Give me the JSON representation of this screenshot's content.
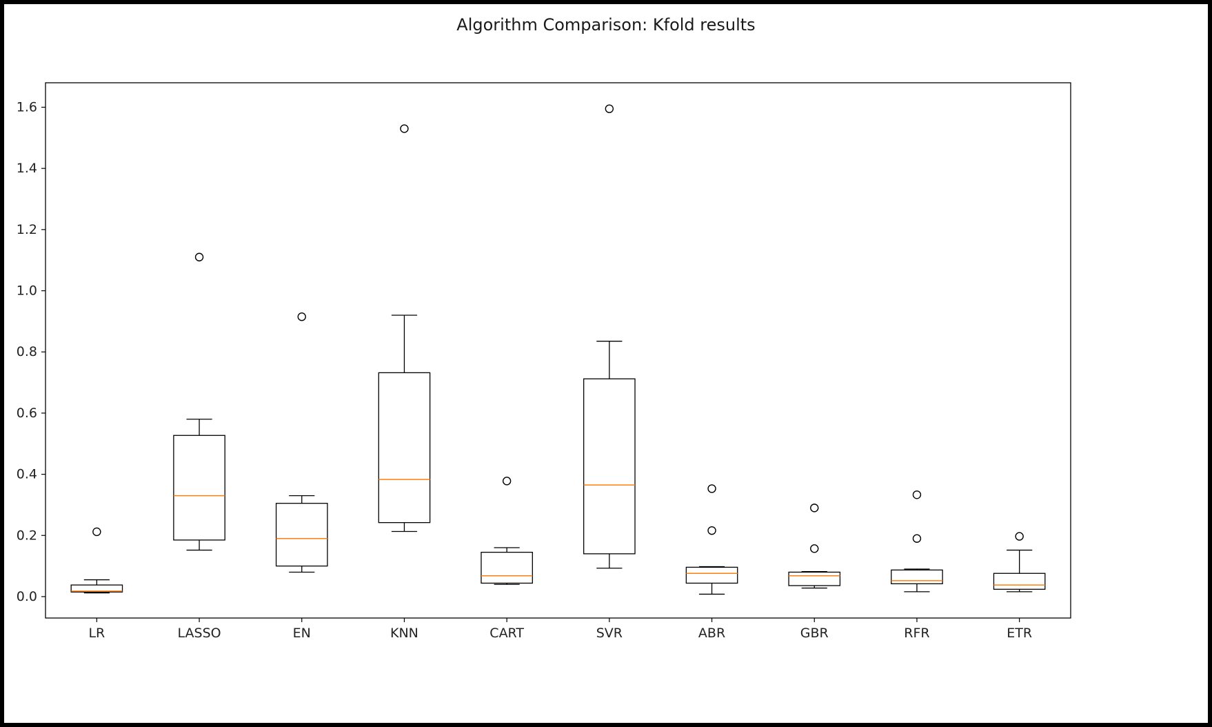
{
  "chart_data": {
    "type": "box",
    "title": "Algorithm Comparison: Kfold results",
    "xlabel": "",
    "ylabel": "",
    "ylim": [
      -0.07,
      1.68
    ],
    "yticks": [
      0.0,
      0.2,
      0.4,
      0.6,
      0.8,
      1.0,
      1.2,
      1.4,
      1.6
    ],
    "ytick_labels": [
      "0.0",
      "0.2",
      "0.4",
      "0.6",
      "0.8",
      "1.0",
      "1.2",
      "1.4",
      "1.6"
    ],
    "grid": false,
    "colors": {
      "box": "#000000",
      "median": "#ff7f0e",
      "background": "#ffffff"
    },
    "categories": [
      "LR",
      "LASSO",
      "EN",
      "KNN",
      "CART",
      "SVR",
      "ABR",
      "GBR",
      "RFR",
      "ETR"
    ],
    "boxes": [
      {
        "name": "LR",
        "whislo": 0.012,
        "q1": 0.015,
        "med": 0.018,
        "q3": 0.038,
        "whishi": 0.055,
        "fliers": [
          0.212
        ]
      },
      {
        "name": "LASSO",
        "whislo": 0.152,
        "q1": 0.185,
        "med": 0.33,
        "q3": 0.527,
        "whishi": 0.58,
        "fliers": [
          1.11
        ]
      },
      {
        "name": "EN",
        "whislo": 0.08,
        "q1": 0.1,
        "med": 0.19,
        "q3": 0.305,
        "whishi": 0.33,
        "fliers": [
          0.915
        ]
      },
      {
        "name": "KNN",
        "whislo": 0.213,
        "q1": 0.242,
        "med": 0.383,
        "q3": 0.732,
        "whishi": 0.92,
        "fliers": [
          1.53
        ]
      },
      {
        "name": "CART",
        "whislo": 0.04,
        "q1": 0.044,
        "med": 0.068,
        "q3": 0.145,
        "whishi": 0.16,
        "fliers": [
          0.378
        ]
      },
      {
        "name": "SVR",
        "whislo": 0.093,
        "q1": 0.14,
        "med": 0.365,
        "q3": 0.712,
        "whishi": 0.835,
        "fliers": [
          1.595
        ]
      },
      {
        "name": "ABR",
        "whislo": 0.008,
        "q1": 0.044,
        "med": 0.076,
        "q3": 0.096,
        "whishi": 0.098,
        "fliers": [
          0.216,
          0.353
        ]
      },
      {
        "name": "GBR",
        "whislo": 0.028,
        "q1": 0.036,
        "med": 0.068,
        "q3": 0.08,
        "whishi": 0.082,
        "fliers": [
          0.157,
          0.29
        ]
      },
      {
        "name": "RFR",
        "whislo": 0.016,
        "q1": 0.042,
        "med": 0.052,
        "q3": 0.087,
        "whishi": 0.09,
        "fliers": [
          0.19,
          0.333
        ]
      },
      {
        "name": "ETR",
        "whislo": 0.016,
        "q1": 0.024,
        "med": 0.038,
        "q3": 0.076,
        "whishi": 0.152,
        "fliers": [
          0.197
        ]
      }
    ]
  }
}
